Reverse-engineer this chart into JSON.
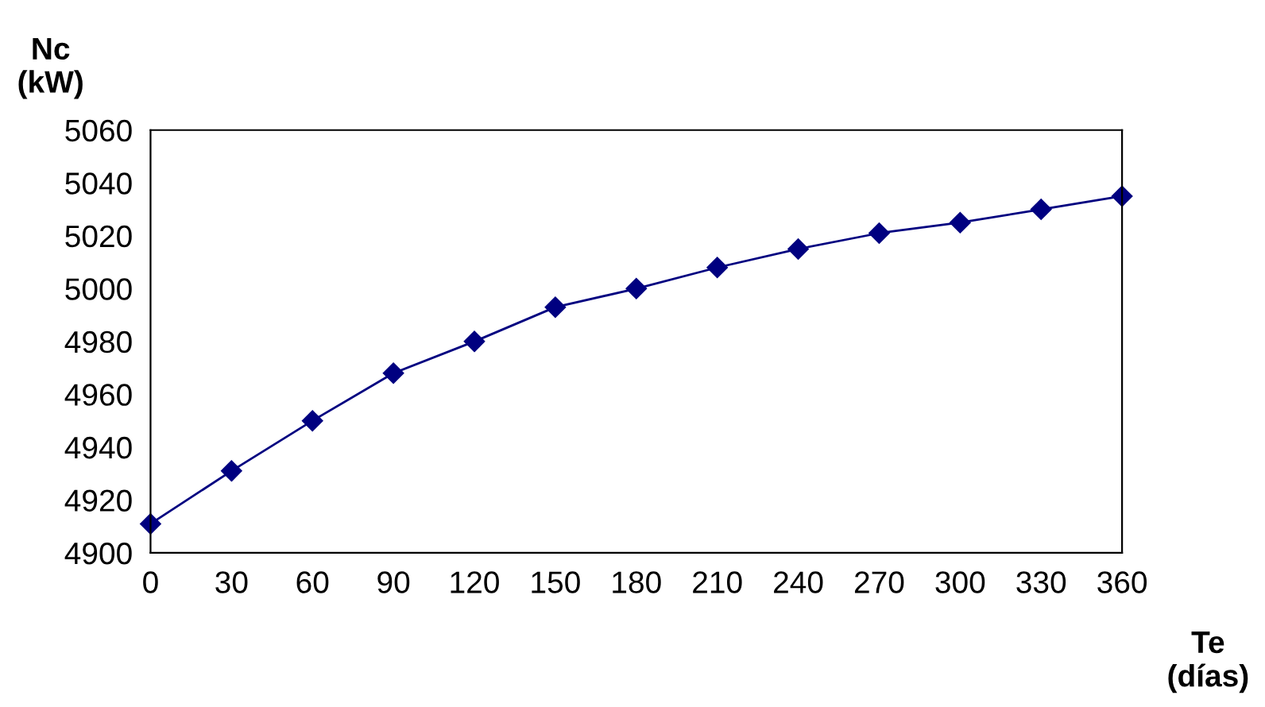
{
  "chart_data": {
    "type": "line",
    "xlabel": "Te\n(días)",
    "ylabel": "Nc\n(kW)",
    "x": [
      0,
      30,
      60,
      90,
      120,
      150,
      180,
      210,
      240,
      270,
      300,
      330,
      360
    ],
    "series": [
      {
        "color": "#000080",
        "values": [
          4911,
          4931,
          4950,
          4968,
          4980,
          4993,
          5000,
          5008,
          5015,
          5021,
          5025,
          5030,
          5035
        ]
      }
    ],
    "xlim": [
      0,
      360
    ],
    "xticks": [
      0,
      30,
      60,
      90,
      120,
      150,
      180,
      210,
      240,
      270,
      300,
      330,
      360
    ],
    "ylim": [
      4900,
      5060
    ],
    "yticks": [
      4900,
      4920,
      4940,
      4960,
      4980,
      5000,
      5020,
      5040,
      5060
    ],
    "grid": false,
    "legend": false,
    "marker": "diamond",
    "line_style": "solid"
  }
}
